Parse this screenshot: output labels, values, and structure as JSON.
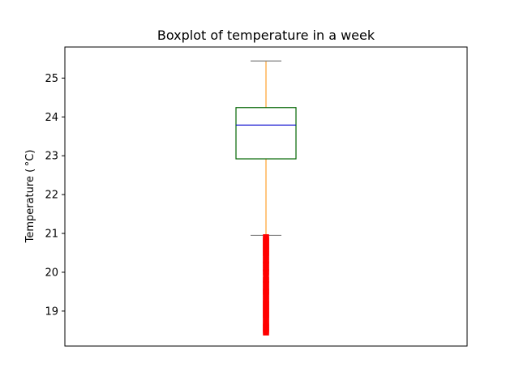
{
  "chart_data": {
    "type": "box",
    "title": "Boxplot of temperature in a week",
    "xlabel": "",
    "ylabel": "Temperature ($^\\circ$C)",
    "ylabel_display": "Temperature ( °C)",
    "ylim": [
      18.1,
      25.8
    ],
    "yticks": [
      19,
      20,
      21,
      22,
      23,
      24,
      25
    ],
    "box": {
      "whisker_low": 20.95,
      "q1": 22.92,
      "median": 23.79,
      "q3": 24.24,
      "whisker_high": 25.44
    },
    "outliers": [
      18.45,
      18.5,
      18.55,
      18.6,
      18.65,
      18.7,
      18.8,
      18.85,
      18.9,
      18.95,
      19.0,
      19.05,
      19.1,
      19.15,
      19.2,
      19.25,
      19.3,
      19.4,
      19.45,
      19.5,
      19.55,
      19.6,
      19.7,
      19.75,
      19.8,
      19.9,
      20.0,
      20.05,
      20.1,
      20.2,
      20.25,
      20.3,
      20.4,
      20.45,
      20.5,
      20.55,
      20.6,
      20.65,
      20.7,
      20.75,
      20.8,
      20.85,
      20.9
    ],
    "colors": {
      "box": "#006400",
      "median": "#0000cd",
      "whisker": "#ff8c00",
      "cap": "#808080",
      "outlier": "#ff0000"
    },
    "grid": false
  }
}
